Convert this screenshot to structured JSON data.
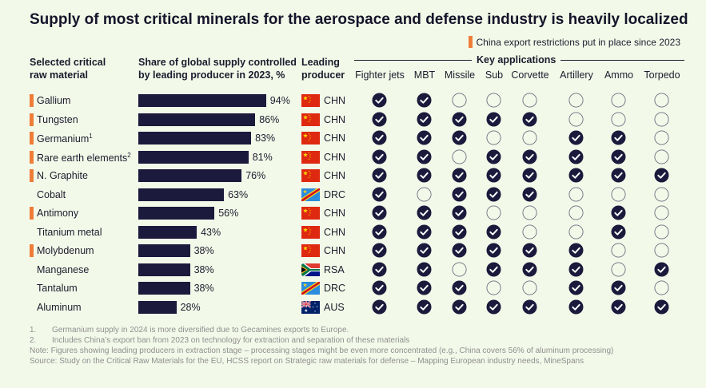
{
  "title": "Supply of most critical minerals for the aerospace and defense industry is heavily localized",
  "legend": {
    "label": "China export restrictions put in place since 2023",
    "color": "#ee7d38"
  },
  "headers": {
    "material": [
      "Selected critical",
      "raw material"
    ],
    "share": [
      "Share of global supply controlled",
      "by leading producer in 2023, %"
    ],
    "producer": [
      "Leading",
      "producer"
    ],
    "key_applications": "Key applications"
  },
  "applications": [
    "Fighter jets",
    "MBT",
    "Missile",
    "Sub",
    "Corvette",
    "Artillery",
    "Ammo",
    "Torpedo"
  ],
  "chart_data": {
    "type": "bar",
    "title": "Supply of most critical minerals for the aerospace and defense industry is heavily localized",
    "xlabel": "Share of global supply controlled by leading producer in 2023, %",
    "ylabel": "Selected critical raw material",
    "xlim": [
      0,
      100
    ],
    "categories": [
      "Gallium",
      "Tungsten",
      "Germanium",
      "Rare earth elements",
      "N. Graphite",
      "Cobalt",
      "Antimony",
      "Titanium metal",
      "Molybdenum",
      "Manganese",
      "Tantalum",
      "Aluminum"
    ],
    "values": [
      94,
      86,
      83,
      81,
      76,
      63,
      56,
      43,
      38,
      38,
      38,
      28
    ],
    "rows": [
      {
        "name": "Gallium",
        "sup": "",
        "restricted": true,
        "share": 94,
        "share_label": "94%",
        "producer": "CHN",
        "apps": [
          1,
          1,
          0,
          0,
          0,
          0,
          0,
          0
        ]
      },
      {
        "name": "Tungsten",
        "sup": "",
        "restricted": true,
        "share": 86,
        "share_label": "86%",
        "producer": "CHN",
        "apps": [
          1,
          1,
          1,
          1,
          1,
          0,
          0,
          0
        ]
      },
      {
        "name": "Germanium",
        "sup": "1",
        "restricted": true,
        "share": 83,
        "share_label": "83%",
        "producer": "CHN",
        "apps": [
          1,
          1,
          1,
          0,
          0,
          1,
          1,
          0
        ]
      },
      {
        "name": "Rare earth elements",
        "sup": "2",
        "restricted": true,
        "share": 81,
        "share_label": "81%",
        "producer": "CHN",
        "apps": [
          1,
          1,
          0,
          1,
          1,
          1,
          1,
          0
        ]
      },
      {
        "name": "N. Graphite",
        "sup": "",
        "restricted": true,
        "share": 76,
        "share_label": "76%",
        "producer": "CHN",
        "apps": [
          1,
          1,
          1,
          1,
          1,
          1,
          1,
          1
        ]
      },
      {
        "name": "Cobalt",
        "sup": "",
        "restricted": false,
        "share": 63,
        "share_label": "63%",
        "producer": "DRC",
        "apps": [
          1,
          0,
          1,
          1,
          1,
          0,
          0,
          0
        ]
      },
      {
        "name": "Antimony",
        "sup": "",
        "restricted": true,
        "share": 56,
        "share_label": "56%",
        "producer": "CHN",
        "apps": [
          1,
          1,
          1,
          0,
          0,
          0,
          1,
          0
        ]
      },
      {
        "name": "Titanium metal",
        "sup": "",
        "restricted": false,
        "share": 43,
        "share_label": "43%",
        "producer": "CHN",
        "apps": [
          1,
          1,
          1,
          1,
          0,
          0,
          1,
          0
        ]
      },
      {
        "name": "Molybdenum",
        "sup": "",
        "restricted": true,
        "share": 38,
        "share_label": "38%",
        "producer": "CHN",
        "apps": [
          1,
          1,
          1,
          1,
          1,
          1,
          0,
          0
        ]
      },
      {
        "name": "Manganese",
        "sup": "",
        "restricted": false,
        "share": 38,
        "share_label": "38%",
        "producer": "RSA",
        "apps": [
          1,
          1,
          0,
          1,
          1,
          1,
          0,
          1
        ]
      },
      {
        "name": "Tantalum",
        "sup": "",
        "restricted": false,
        "share": 38,
        "share_label": "38%",
        "producer": "DRC",
        "apps": [
          1,
          1,
          1,
          0,
          0,
          1,
          1,
          0
        ]
      },
      {
        "name": "Aluminum",
        "sup": "",
        "restricted": false,
        "share": 28,
        "share_label": "28%",
        "producer": "AUS",
        "apps": [
          1,
          1,
          1,
          1,
          1,
          1,
          1,
          1
        ]
      }
    ]
  },
  "footnotes": [
    {
      "num": "1.",
      "text": "Germanium supply in 2024 is more diversified due to Gecamines exports to Europe."
    },
    {
      "num": "2.",
      "text": "Includes China’s export ban from 2023 on technology for extraction and separation of these materials"
    },
    {
      "num": "",
      "text": "Note: Figures showing leading producers in extraction stage – processing stages might be even more concentrated (e.g., China covers 56% of aluminum processing)"
    },
    {
      "num": "",
      "text": "Source: Study on the Critical Raw Materials for the EU, HCSS report on Strategic raw materials for defense – Mapping European industry needs, MineSpans"
    }
  ],
  "colors": {
    "bar": "#1b1a3c",
    "accent": "#ee7d38",
    "check_fill": "#1b1a3c",
    "empty_circle": "#6f6f80",
    "background": "#f3f9e9"
  }
}
